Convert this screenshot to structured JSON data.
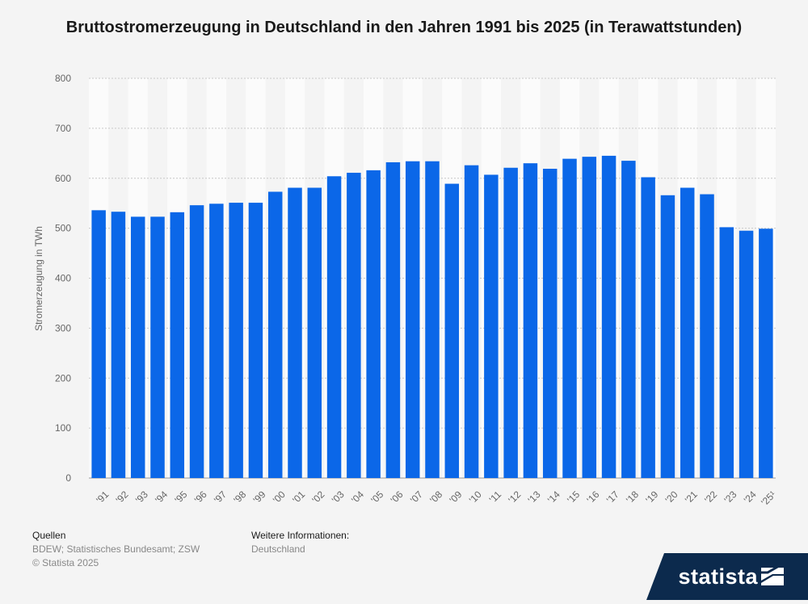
{
  "chart_data": {
    "type": "bar",
    "title": "Bruttostromerzeugung in Deutschland in den Jahren 1991 bis 2025 (in Terawattstunden)",
    "ylabel": "Stromerzeugung in TWh",
    "xlabel": "",
    "ylim": [
      0,
      800
    ],
    "yticks": [
      "0",
      "100",
      "200",
      "300",
      "400",
      "500",
      "600",
      "700",
      "800"
    ],
    "categories": [
      "'91",
      "'92",
      "'93",
      "'94",
      "'95",
      "'96",
      "'97",
      "'98",
      "'99",
      "'00",
      "'01",
      "'02",
      "'03",
      "'04",
      "'05",
      "'06",
      "'07",
      "'08",
      "'09",
      "'10",
      "'11",
      "'12",
      "'13",
      "'14",
      "'15",
      "'16",
      "'17",
      "'18",
      "'19",
      "'20",
      "'21",
      "'22",
      "'23",
      "'24",
      "'25¹"
    ],
    "values": [
      536,
      533,
      523,
      523,
      532,
      546,
      549,
      551,
      551,
      573,
      581,
      581,
      604,
      611,
      616,
      632,
      634,
      634,
      589,
      626,
      607,
      621,
      630,
      619,
      639,
      643,
      645,
      635,
      602,
      566,
      581,
      568,
      502,
      495,
      499
    ],
    "bar_color": "#0b67e8",
    "grid": true,
    "legend": "none"
  },
  "footer": {
    "sources_heading": "Quellen",
    "sources": "BDEW; Statistisches Bundesamt; ZSW",
    "copyright": "© Statista 2025",
    "more_info_heading": "Weitere Informationen:",
    "more_info": "Deutschland"
  },
  "logo": {
    "text": "statista",
    "background_color": "#0c2a4d"
  }
}
